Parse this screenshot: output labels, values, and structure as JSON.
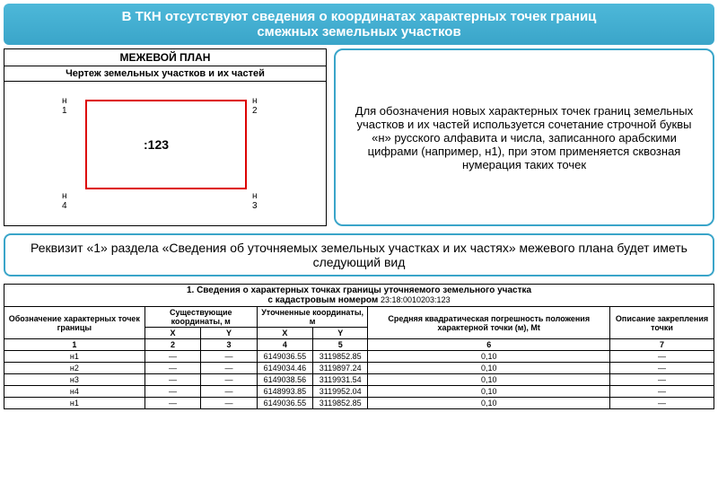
{
  "header": {
    "line1": "В ТКН отсутствуют сведения о координатах характерных точек границ",
    "line2": "смежных земельных участков"
  },
  "plan": {
    "title": "МЕЖЕВОЙ ПЛАН",
    "subtitle": "Чертеж земельных участков и их частей",
    "corners": {
      "h1": "н\n1",
      "h2": "н\n2",
      "h3": "н\n3",
      "h4": "н\n4"
    },
    "center": ":123",
    "rect_color": "#d00"
  },
  "explanation": "Для обозначения новых характерных точек границ земельных участков и их частей используется сочетание строчной буквы «н» русского алфавита и числа, записанного арабскими цифрами (например, н1), при этом применяется сквозная нумерация таких точек",
  "mid_banner": "Реквизит «1» раздела «Сведения об уточняемых земельных участках и их частях» межевого плана будет иметь следующий вид",
  "table": {
    "title_line1": "1. Сведения о характерных точках границы уточняемого земельного участка",
    "title_line2_prefix": "с кадастровым номером ",
    "cadastral_number": "23:18:0010203:123",
    "headers": {
      "col1": "Обозначение характерных точек границы",
      "col2": "Существующие координаты, м",
      "col3": "Уточненные координаты, м",
      "col4": "Средняя квадратическая погрешность положения характерной точки (м), Mt",
      "col5": "Описание закрепления точки",
      "x": "X",
      "y": "Y"
    },
    "numrow": [
      "1",
      "2",
      "3",
      "4",
      "5",
      "6",
      "7"
    ],
    "rows": [
      {
        "pt": "н1",
        "ex": "—",
        "ey": "—",
        "ux": "6149036.55",
        "uy": "3119852.85",
        "err": "0,10",
        "desc": "—"
      },
      {
        "pt": "н2",
        "ex": "—",
        "ey": "—",
        "ux": "6149034.46",
        "uy": "3119897.24",
        "err": "0,10",
        "desc": "—"
      },
      {
        "pt": "н3",
        "ex": "—",
        "ey": "—",
        "ux": "6149038.56",
        "uy": "3119931.54",
        "err": "0,10",
        "desc": "—"
      },
      {
        "pt": "н4",
        "ex": "—",
        "ey": "—",
        "ux": "6148993.85",
        "uy": "3119952.04",
        "err": "0,10",
        "desc": "—"
      },
      {
        "pt": "н1",
        "ex": "—",
        "ey": "—",
        "ux": "6149036.55",
        "uy": "3119852.85",
        "err": "0,10",
        "desc": "—"
      }
    ]
  }
}
